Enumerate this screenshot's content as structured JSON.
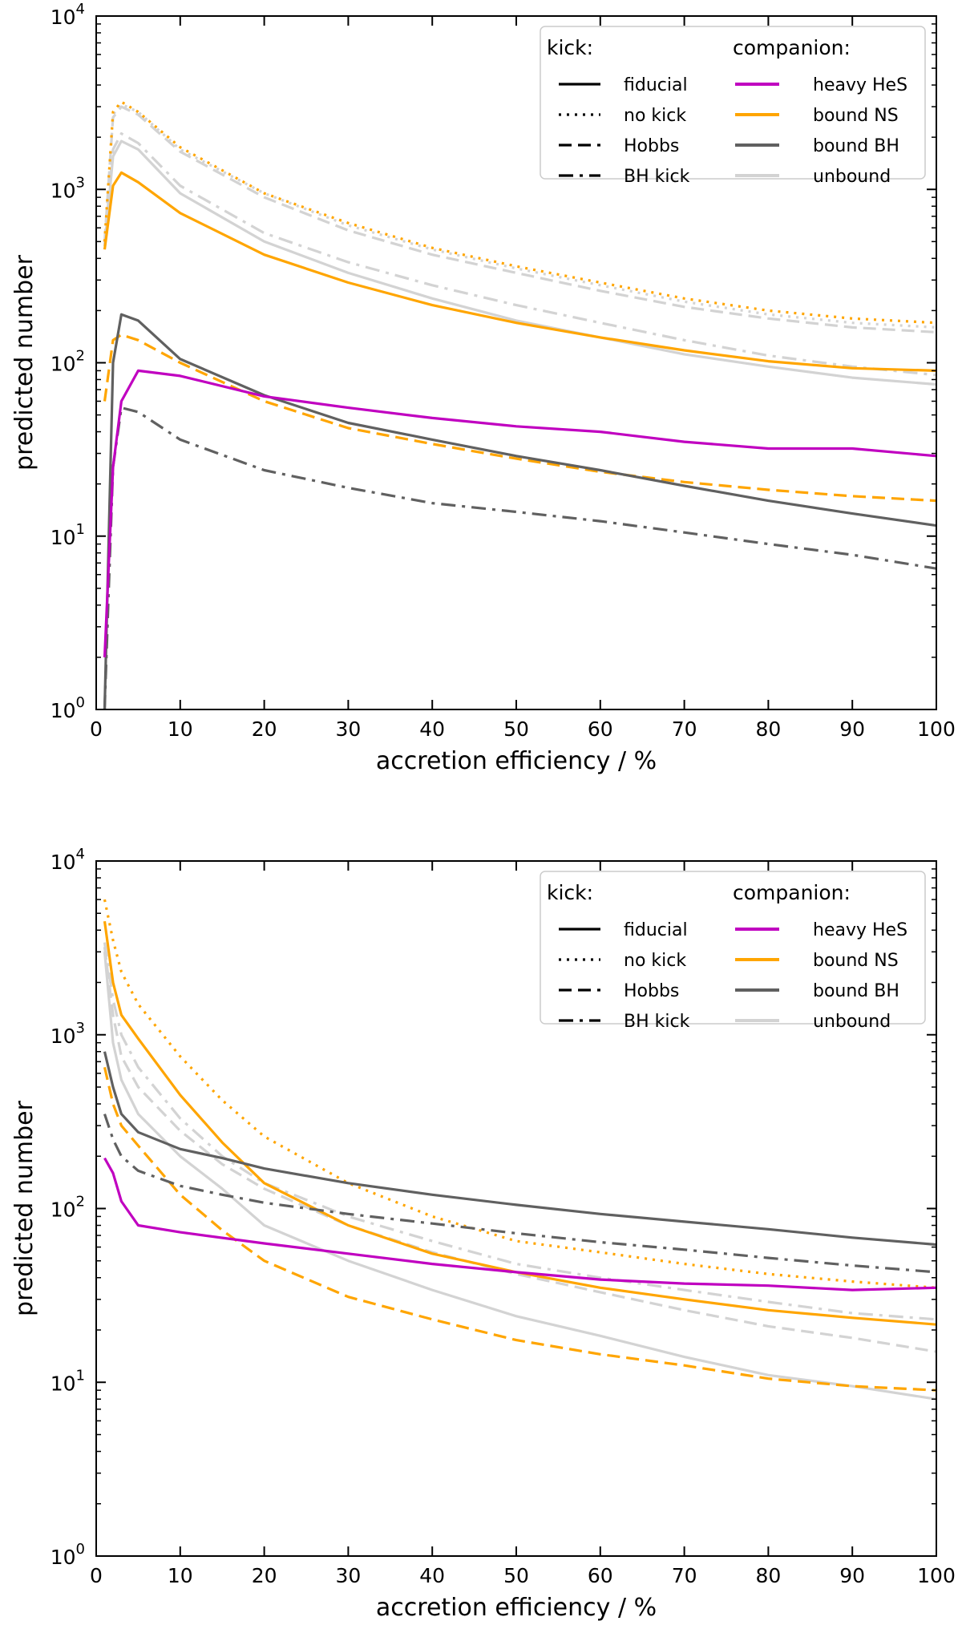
{
  "chart_data": [
    {
      "type": "line",
      "xlabel": "accretion efficiency / %",
      "ylabel": "predicted number",
      "xlim": [
        0,
        100
      ],
      "ylim": [
        1,
        10000
      ],
      "yscale": "log",
      "xticks": [
        "0",
        "10",
        "20",
        "30",
        "40",
        "50",
        "60",
        "70",
        "80",
        "90",
        "100"
      ],
      "yticks": [
        {
          "base": "10",
          "exp": "0"
        },
        {
          "base": "10",
          "exp": "1"
        },
        {
          "base": "10",
          "exp": "2"
        },
        {
          "base": "10",
          "exp": "3"
        },
        {
          "base": "10",
          "exp": "4"
        }
      ],
      "legend": {
        "placement": "top-right",
        "kick_title": "kick:",
        "companion_title": "companion:",
        "kick_items": [
          {
            "label": "fiducial",
            "style": "solid"
          },
          {
            "label": "no kick",
            "style": "dotted"
          },
          {
            "label": "Hobbs",
            "style": "dashed"
          },
          {
            "label": "BH kick",
            "style": "dashdot"
          }
        ],
        "companion_items": [
          {
            "label": "heavy HeS",
            "color": "#c000c0"
          },
          {
            "label": "bound NS",
            "color": "#ffa500"
          },
          {
            "label": "bound BH",
            "color": "#606060"
          },
          {
            "label": "unbound",
            "color": "#d3d3d3"
          }
        ]
      },
      "series": [
        {
          "name": "unbound (no kick)",
          "color": "#d3d3d3",
          "style": "dotted",
          "x": [
            1,
            2,
            3,
            5,
            10,
            20,
            30,
            40,
            50,
            60,
            70,
            80,
            90,
            100
          ],
          "y": [
            500,
            2700,
            3100,
            2800,
            1700,
            950,
            620,
            450,
            350,
            280,
            225,
            190,
            170,
            160
          ]
        },
        {
          "name": "unbound (Hobbs)",
          "color": "#d3d3d3",
          "style": "dashed",
          "x": [
            1,
            2,
            3,
            5,
            10,
            20,
            30,
            40,
            50,
            60,
            70,
            80,
            90,
            100
          ],
          "y": [
            500,
            2600,
            3000,
            2700,
            1650,
            900,
            580,
            420,
            330,
            260,
            210,
            180,
            160,
            150
          ]
        },
        {
          "name": "unbound (BH kick)",
          "color": "#d3d3d3",
          "style": "dashdot",
          "x": [
            1,
            2,
            3,
            5,
            10,
            20,
            30,
            40,
            50,
            60,
            70,
            80,
            90,
            100
          ],
          "y": [
            480,
            1700,
            2100,
            1850,
            1050,
            560,
            380,
            280,
            215,
            170,
            135,
            110,
            95,
            85
          ]
        },
        {
          "name": "unbound (fiducial)",
          "color": "#d3d3d3",
          "style": "solid",
          "x": [
            1,
            2,
            3,
            5,
            10,
            20,
            30,
            40,
            50,
            60,
            70,
            80,
            90,
            100
          ],
          "y": [
            470,
            1550,
            1900,
            1700,
            950,
            500,
            330,
            235,
            175,
            140,
            112,
            95,
            82,
            75
          ]
        },
        {
          "name": "bound NS (no kick)",
          "color": "#ffa500",
          "style": "dotted",
          "x": [
            1,
            2,
            3,
            5,
            10,
            20,
            30,
            40,
            50,
            60,
            70,
            80,
            90,
            100
          ],
          "y": [
            500,
            2800,
            3200,
            2800,
            1750,
            950,
            640,
            460,
            360,
            290,
            235,
            200,
            180,
            170
          ]
        },
        {
          "name": "bound NS (fiducial)",
          "color": "#ffa500",
          "style": "solid",
          "x": [
            1,
            2,
            3,
            5,
            10,
            20,
            30,
            40,
            50,
            60,
            70,
            80,
            90,
            100
          ],
          "y": [
            450,
            1050,
            1250,
            1100,
            730,
            420,
            290,
            215,
            170,
            140,
            118,
            102,
            93,
            90
          ]
        },
        {
          "name": "bound NS (Hobbs)",
          "color": "#ffa500",
          "style": "dashed",
          "x": [
            1,
            2,
            3,
            5,
            10,
            20,
            30,
            40,
            50,
            60,
            70,
            80,
            90,
            100
          ],
          "y": [
            60,
            135,
            145,
            135,
            100,
            60,
            42,
            34,
            28,
            23.5,
            20.5,
            18.5,
            17,
            16
          ]
        },
        {
          "name": "bound BH (fiducial)",
          "color": "#606060",
          "style": "solid",
          "x": [
            1,
            1.5,
            2,
            3,
            5,
            10,
            20,
            30,
            40,
            50,
            60,
            70,
            80,
            90,
            100
          ],
          "y": [
            1,
            10,
            100,
            190,
            175,
            105,
            65,
            45,
            36,
            29,
            24,
            19.5,
            16,
            13.5,
            11.5
          ]
        },
        {
          "name": "bound BH (BH kick)",
          "color": "#606060",
          "style": "dashdot",
          "x": [
            1,
            1.5,
            2,
            3,
            5,
            10,
            20,
            30,
            40,
            50,
            60,
            70,
            80,
            90,
            100
          ],
          "y": [
            1,
            5,
            25,
            55,
            52,
            36,
            24,
            19,
            15.5,
            13.8,
            12.2,
            10.5,
            9,
            7.8,
            6.5
          ]
        },
        {
          "name": "heavy HeS (fiducial)",
          "color": "#c000c0",
          "style": "solid",
          "x": [
            1,
            2,
            3,
            5,
            10,
            20,
            30,
            40,
            50,
            60,
            70,
            80,
            90,
            100
          ],
          "y": [
            2,
            25,
            60,
            90,
            84,
            64,
            55,
            48,
            43,
            40,
            35,
            32,
            32,
            29
          ]
        }
      ]
    },
    {
      "type": "line",
      "xlabel": "accretion efficiency / %",
      "ylabel": "predicted number",
      "xlim": [
        0,
        100
      ],
      "ylim": [
        1,
        10000
      ],
      "yscale": "log",
      "xticks": [
        "0",
        "10",
        "20",
        "30",
        "40",
        "50",
        "60",
        "70",
        "80",
        "90",
        "100"
      ],
      "yticks": [
        {
          "base": "10",
          "exp": "0"
        },
        {
          "base": "10",
          "exp": "1"
        },
        {
          "base": "10",
          "exp": "2"
        },
        {
          "base": "10",
          "exp": "3"
        },
        {
          "base": "10",
          "exp": "4"
        }
      ],
      "legend": {
        "placement": "top-right",
        "kick_title": "kick:",
        "companion_title": "companion:",
        "kick_items": [
          {
            "label": "fiducial",
            "style": "solid"
          },
          {
            "label": "no kick",
            "style": "dotted"
          },
          {
            "label": "Hobbs",
            "style": "dashed"
          },
          {
            "label": "BH kick",
            "style": "dashdot"
          }
        ],
        "companion_items": [
          {
            "label": "heavy HeS",
            "color": "#c000c0"
          },
          {
            "label": "bound NS",
            "color": "#ffa500"
          },
          {
            "label": "bound BH",
            "color": "#606060"
          },
          {
            "label": "unbound",
            "color": "#d3d3d3"
          }
        ]
      },
      "series": [
        {
          "name": "unbound (fiducial)",
          "color": "#d3d3d3",
          "style": "solid",
          "x": [
            1,
            2,
            3,
            5,
            10,
            15,
            20,
            30,
            40,
            50,
            60,
            70,
            80,
            90,
            100
          ],
          "y": [
            3000,
            900,
            550,
            350,
            200,
            130,
            80,
            50,
            34,
            24,
            18.5,
            14,
            11,
            9.5,
            8
          ]
        },
        {
          "name": "unbound (BH kick)",
          "color": "#d3d3d3",
          "style": "dashdot",
          "x": [
            1,
            2,
            3,
            5,
            10,
            15,
            20,
            30,
            40,
            50,
            60,
            70,
            80,
            90,
            100
          ],
          "y": [
            3400,
            1600,
            1000,
            650,
            330,
            200,
            140,
            90,
            65,
            48,
            40,
            34,
            29,
            25,
            23
          ]
        },
        {
          "name": "unbound (Hobbs)",
          "color": "#d3d3d3",
          "style": "dashed",
          "x": [
            1,
            2,
            3,
            5,
            10,
            15,
            20,
            30,
            40,
            50,
            60,
            70,
            80,
            90,
            100
          ],
          "y": [
            3200,
            1300,
            750,
            500,
            280,
            180,
            130,
            80,
            56,
            42,
            33,
            26,
            21,
            18,
            15
          ]
        },
        {
          "name": "bound NS (no kick)",
          "color": "#ffa500",
          "style": "dotted",
          "x": [
            1,
            2,
            3,
            5,
            10,
            15,
            20,
            30,
            40,
            50,
            60,
            70,
            80,
            90,
            100
          ],
          "y": [
            6000,
            3500,
            2300,
            1500,
            750,
            420,
            260,
            140,
            90,
            65,
            56,
            48,
            42,
            38,
            35
          ]
        },
        {
          "name": "bound NS (fiducial)",
          "color": "#ffa500",
          "style": "solid",
          "x": [
            1,
            2,
            3,
            5,
            10,
            15,
            20,
            30,
            40,
            50,
            60,
            70,
            80,
            90,
            100
          ],
          "y": [
            4500,
            2000,
            1300,
            950,
            450,
            240,
            140,
            80,
            55,
            43,
            35,
            30,
            26,
            23.5,
            21.5
          ]
        },
        {
          "name": "bound NS (Hobbs)",
          "color": "#ffa500",
          "style": "dashed",
          "x": [
            1,
            2,
            3,
            5,
            10,
            15,
            20,
            30,
            40,
            50,
            60,
            70,
            80,
            90,
            100
          ],
          "y": [
            650,
            400,
            300,
            230,
            120,
            75,
            50,
            31,
            23,
            17.5,
            14.5,
            12.5,
            10.5,
            9.5,
            9
          ]
        },
        {
          "name": "bound BH (fiducial)",
          "color": "#606060",
          "style": "solid",
          "x": [
            1,
            2,
            3,
            5,
            10,
            15,
            20,
            30,
            40,
            50,
            60,
            70,
            80,
            90,
            100
          ],
          "y": [
            800,
            500,
            350,
            275,
            220,
            195,
            170,
            140,
            120,
            105,
            93,
            84,
            76,
            68,
            62
          ]
        },
        {
          "name": "bound BH (BH kick)",
          "color": "#606060",
          "style": "dashdot",
          "x": [
            1,
            2,
            3,
            5,
            10,
            15,
            20,
            30,
            40,
            50,
            60,
            70,
            80,
            90,
            100
          ],
          "y": [
            350,
            250,
            200,
            165,
            135,
            120,
            108,
            93,
            82,
            72,
            64,
            58,
            52,
            47,
            43
          ]
        },
        {
          "name": "heavy HeS (fiducial)",
          "color": "#c000c0",
          "style": "solid",
          "x": [
            1,
            2,
            3,
            5,
            10,
            20,
            30,
            40,
            50,
            60,
            70,
            80,
            90,
            100
          ],
          "y": [
            195,
            160,
            110,
            80,
            73,
            63,
            55,
            48,
            43,
            39,
            37,
            36,
            34,
            35
          ]
        }
      ]
    }
  ]
}
